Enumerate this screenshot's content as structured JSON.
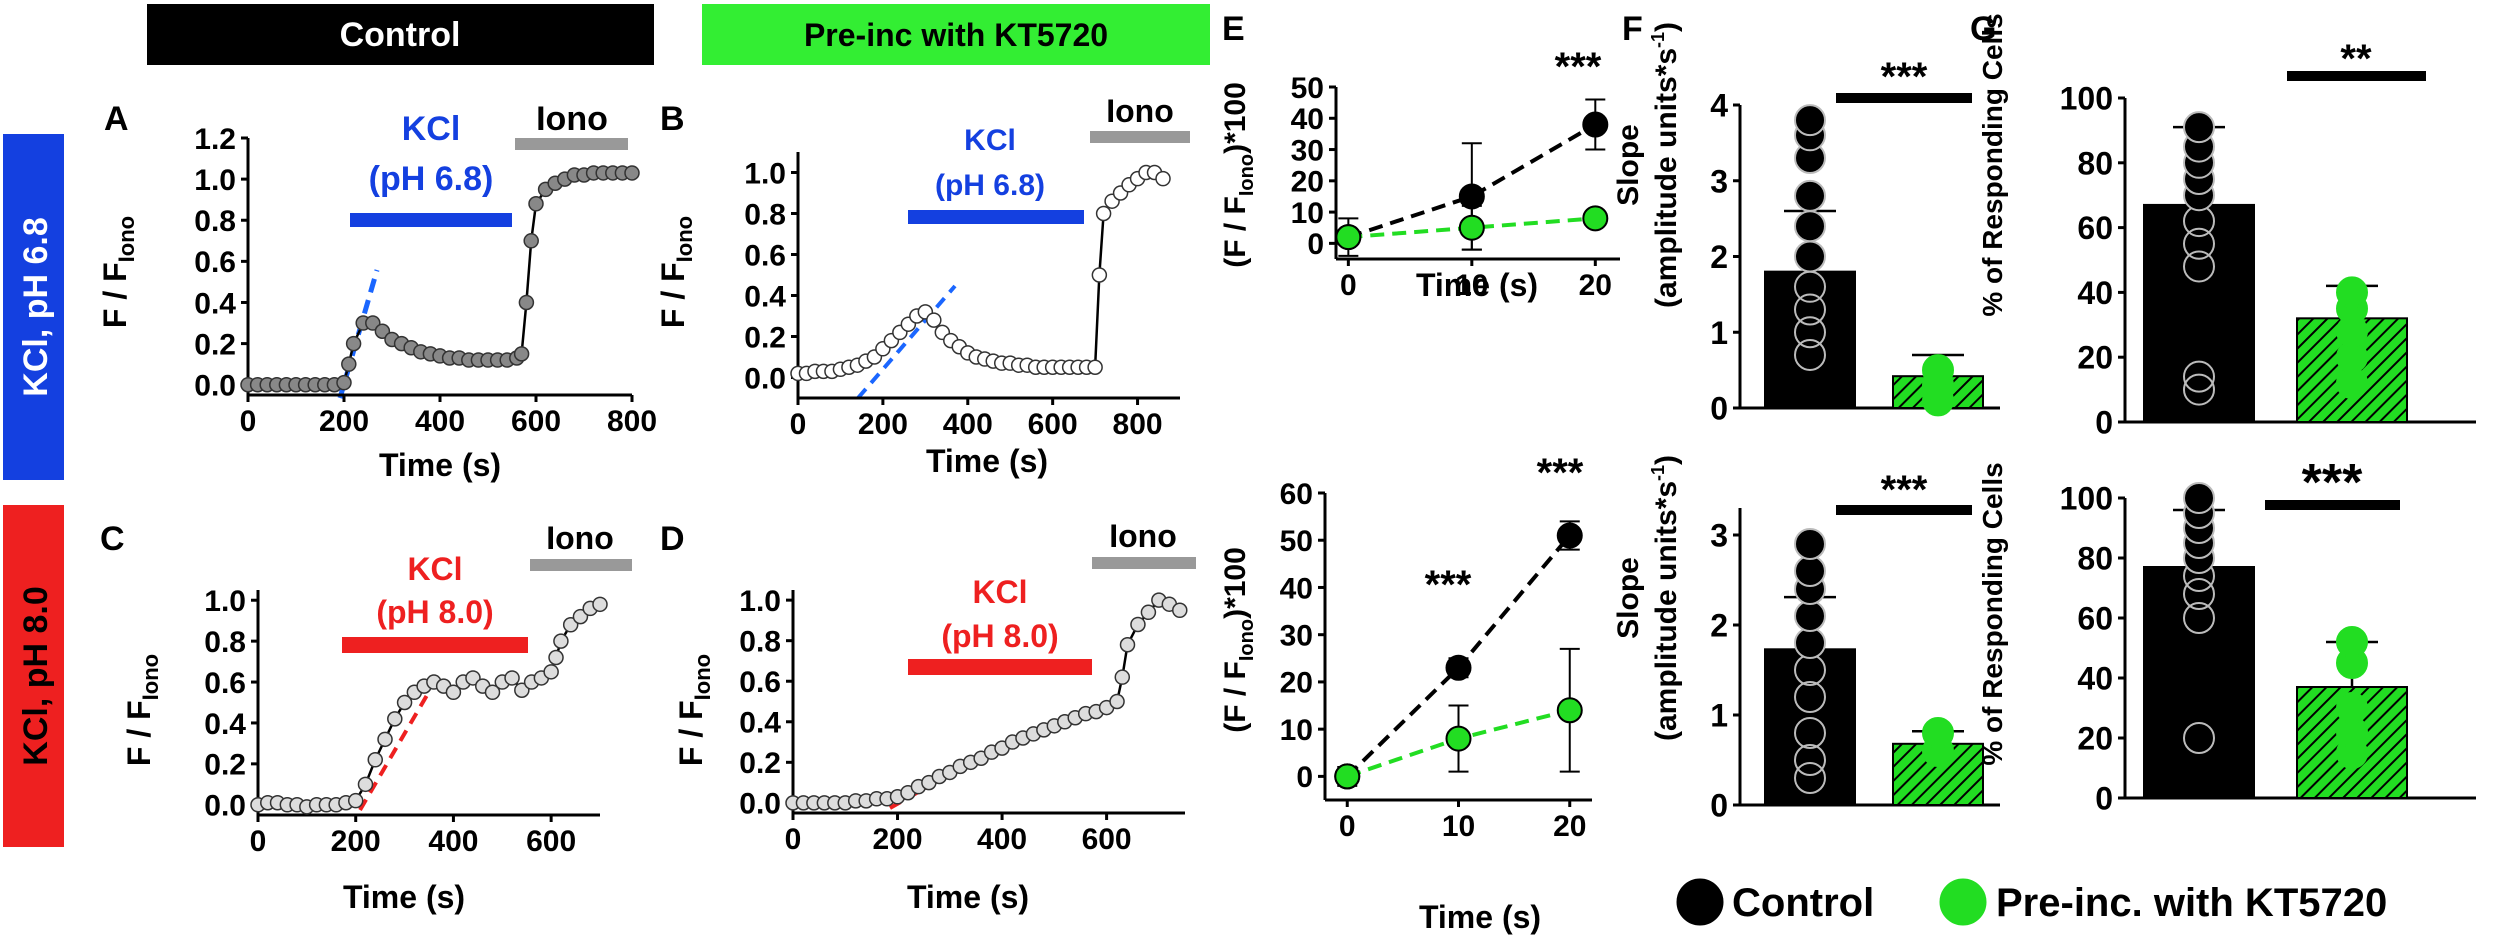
{
  "headers": {
    "control": "Control",
    "kt": "Pre-inc with KT5720"
  },
  "row_labels": {
    "ph68": "KCl, pH 6.8",
    "ph80": "KCl, pH 8.0"
  },
  "panel_letters": {
    "A": "A",
    "B": "B",
    "C": "C",
    "D": "D",
    "E": "E",
    "F": "F",
    "G": "G"
  },
  "stim": {
    "kcl": "KCl",
    "ph68": "(pH 6.8)",
    "ph80": "(pH 8.0)",
    "iono": "Iono"
  },
  "axis": {
    "time_s": "Time (s)",
    "f_main": "F / F",
    "f_sub": "Iono",
    "e_main": "(F / F",
    "e_sub": "Iono",
    "e_tail": ")*100",
    "slope_top": "Slope",
    "slope_units": "(amplitude units*s",
    "slope_exp": "-1",
    "slope_close": ")",
    "responding": "% of Responding Cells"
  },
  "legend": {
    "control": "Control",
    "kt": "Pre-inc. with KT5720"
  },
  "colors": {
    "blue": "#1440e0",
    "red": "#ee2020",
    "green": "#22dd22",
    "green_header": "#33ee33",
    "gray": "#999999",
    "black": "#000000"
  },
  "chart_data": [
    {
      "id": "A",
      "type": "line",
      "title": "",
      "xlabel": "Time (s)",
      "ylabel": "F / F_Iono",
      "xlim": [
        0,
        800
      ],
      "ylim": [
        -0.05,
        1.2
      ],
      "xticks": [
        "0",
        "200",
        "400",
        "600",
        "800"
      ],
      "yticks": [
        "0.0",
        "0.2",
        "0.4",
        "0.6",
        "0.8",
        "1.0",
        "1.2"
      ],
      "annotations": [
        "KCl (pH 6.8)",
        "Iono"
      ],
      "x": [
        0,
        20,
        40,
        60,
        80,
        100,
        120,
        140,
        160,
        180,
        200,
        210,
        220,
        240,
        260,
        280,
        300,
        320,
        340,
        360,
        380,
        400,
        420,
        440,
        460,
        480,
        500,
        520,
        540,
        560,
        570,
        580,
        590,
        600,
        620,
        640,
        660,
        680,
        700,
        720,
        740,
        760,
        780,
        800
      ],
      "y": [
        0.0,
        0.0,
        0.0,
        0.0,
        0.0,
        0.0,
        0.0,
        0.0,
        0.0,
        0.0,
        0.01,
        0.1,
        0.2,
        0.3,
        0.3,
        0.26,
        0.22,
        0.2,
        0.18,
        0.16,
        0.15,
        0.14,
        0.13,
        0.13,
        0.12,
        0.12,
        0.12,
        0.12,
        0.12,
        0.13,
        0.15,
        0.4,
        0.7,
        0.88,
        0.95,
        0.98,
        1.0,
        1.02,
        1.02,
        1.03,
        1.03,
        1.03,
        1.03,
        1.03
      ]
    },
    {
      "id": "B",
      "type": "line",
      "title": "",
      "xlabel": "Time (s)",
      "ylabel": "F / F_Iono",
      "xlim": [
        0,
        900
      ],
      "ylim": [
        -0.1,
        1.1
      ],
      "xticks": [
        "0",
        "200",
        "400",
        "600",
        "800"
      ],
      "yticks": [
        "0.0",
        "0.2",
        "0.4",
        "0.6",
        "0.8",
        "1.0"
      ],
      "annotations": [
        "KCl (pH 6.8)",
        "Iono"
      ],
      "x": [
        0,
        20,
        40,
        60,
        80,
        100,
        120,
        140,
        160,
        180,
        200,
        220,
        240,
        260,
        280,
        300,
        320,
        340,
        360,
        380,
        400,
        420,
        440,
        460,
        480,
        500,
        520,
        540,
        560,
        580,
        600,
        620,
        640,
        660,
        680,
        700,
        710,
        720,
        740,
        760,
        780,
        800,
        820,
        840,
        860
      ],
      "y": [
        0.02,
        0.02,
        0.03,
        0.03,
        0.03,
        0.04,
        0.05,
        0.06,
        0.08,
        0.1,
        0.14,
        0.18,
        0.22,
        0.26,
        0.3,
        0.32,
        0.28,
        0.22,
        0.18,
        0.15,
        0.12,
        0.1,
        0.09,
        0.08,
        0.07,
        0.07,
        0.06,
        0.06,
        0.05,
        0.05,
        0.05,
        0.05,
        0.05,
        0.05,
        0.05,
        0.05,
        0.5,
        0.8,
        0.86,
        0.9,
        0.94,
        0.97,
        1.0,
        1.0,
        0.97
      ]
    },
    {
      "id": "C",
      "type": "line",
      "title": "",
      "xlabel": "Time (s)",
      "ylabel": "F / F_Iono",
      "xlim": [
        0,
        700
      ],
      "ylim": [
        -0.05,
        1.05
      ],
      "xticks": [
        "0",
        "200",
        "400",
        "600"
      ],
      "yticks": [
        "0.0",
        "0.2",
        "0.4",
        "0.6",
        "0.8",
        "1.0"
      ],
      "annotations": [
        "KCl (pH 8.0)",
        "Iono"
      ],
      "x": [
        0,
        20,
        40,
        60,
        80,
        100,
        120,
        140,
        160,
        180,
        200,
        220,
        240,
        260,
        280,
        300,
        320,
        340,
        360,
        380,
        400,
        420,
        440,
        460,
        480,
        500,
        520,
        540,
        560,
        580,
        600,
        610,
        620,
        640,
        660,
        680,
        700
      ],
      "y": [
        0.0,
        0.01,
        0.01,
        0.0,
        0.0,
        -0.01,
        0.0,
        0.0,
        0.0,
        0.01,
        0.02,
        0.1,
        0.22,
        0.32,
        0.42,
        0.5,
        0.55,
        0.58,
        0.6,
        0.58,
        0.55,
        0.6,
        0.62,
        0.58,
        0.55,
        0.6,
        0.62,
        0.56,
        0.6,
        0.62,
        0.65,
        0.72,
        0.8,
        0.88,
        0.92,
        0.96,
        0.98
      ]
    },
    {
      "id": "D",
      "type": "line",
      "title": "",
      "xlabel": "Time (s)",
      "ylabel": "F / F_Iono",
      "xlim": [
        0,
        750
      ],
      "ylim": [
        -0.05,
        1.05
      ],
      "xticks": [
        "0",
        "200",
        "400",
        "600"
      ],
      "yticks": [
        "0.0",
        "0.2",
        "0.4",
        "0.6",
        "0.8",
        "1.0"
      ],
      "annotations": [
        "KCl (pH 8.0)",
        "Iono"
      ],
      "x": [
        0,
        20,
        40,
        60,
        80,
        100,
        120,
        140,
        160,
        180,
        200,
        220,
        240,
        260,
        280,
        300,
        320,
        340,
        360,
        380,
        400,
        420,
        440,
        460,
        480,
        500,
        520,
        540,
        560,
        580,
        600,
        620,
        630,
        640,
        660,
        680,
        700,
        720,
        740
      ],
      "y": [
        0.0,
        0.0,
        0.0,
        0.0,
        0.0,
        0.0,
        0.01,
        0.01,
        0.02,
        0.02,
        0.03,
        0.05,
        0.08,
        0.1,
        0.13,
        0.15,
        0.18,
        0.2,
        0.22,
        0.25,
        0.27,
        0.3,
        0.32,
        0.34,
        0.36,
        0.38,
        0.4,
        0.42,
        0.44,
        0.45,
        0.47,
        0.5,
        0.62,
        0.78,
        0.88,
        0.94,
        1.0,
        0.98,
        0.95
      ]
    },
    {
      "id": "E_top",
      "type": "scatter",
      "xlabel": "Time (s)",
      "ylabel": "(F / F_Iono)*100",
      "xlim": [
        -1,
        22
      ],
      "ylim": [
        -5,
        50
      ],
      "xticks": [
        "0",
        "10",
        "20"
      ],
      "yticks": [
        "0",
        "10",
        "20",
        "30",
        "40",
        "50"
      ],
      "annotations": [
        "***"
      ],
      "series": [
        {
          "name": "Control",
          "x": [
            0,
            10,
            20
          ],
          "values": [
            2,
            15,
            38
          ],
          "err": [
            6,
            17,
            8
          ]
        },
        {
          "name": "Pre-inc. with KT5720",
          "x": [
            0,
            10,
            20
          ],
          "values": [
            2,
            5,
            8
          ],
          "err": [
            1,
            7,
            2
          ]
        }
      ]
    },
    {
      "id": "E_bottom",
      "type": "scatter",
      "xlabel": "Time (s)",
      "ylabel": "(F / F_Iono)*100",
      "xlim": [
        -2,
        22
      ],
      "ylim": [
        -5,
        60
      ],
      "xticks": [
        "0",
        "10",
        "20"
      ],
      "yticks": [
        "0",
        "10",
        "20",
        "30",
        "40",
        "50",
        "60"
      ],
      "annotations": [
        "***",
        "***"
      ],
      "series": [
        {
          "name": "Control",
          "x": [
            0,
            10,
            20
          ],
          "values": [
            0,
            23,
            51
          ],
          "err": [
            2,
            2,
            3
          ]
        },
        {
          "name": "Pre-inc. with KT5720",
          "x": [
            0,
            10,
            20
          ],
          "values": [
            0,
            8,
            14
          ],
          "err": [
            1,
            7,
            13
          ]
        }
      ]
    },
    {
      "id": "F_top",
      "type": "bar",
      "ylabel": "Slope (amplitude units*s-1)",
      "ylim": [
        0,
        4
      ],
      "yticks": [
        "0",
        "1",
        "2",
        "3",
        "4"
      ],
      "categories": [
        "Control",
        "Pre-inc. with KT5720"
      ],
      "values": [
        1.8,
        0.42
      ],
      "err": [
        0.8,
        0.28
      ],
      "points": [
        [
          0.7,
          1.0,
          1.3,
          1.6,
          2.0,
          2.4,
          2.8,
          3.3,
          3.6,
          3.8
        ],
        [
          0.1,
          0.3,
          0.5
        ]
      ],
      "annotations": [
        "***"
      ]
    },
    {
      "id": "G_top",
      "type": "bar",
      "ylabel": "% of Responding Cells",
      "ylim": [
        0,
        100
      ],
      "yticks": [
        "0",
        "20",
        "40",
        "60",
        "80",
        "100"
      ],
      "categories": [
        "Control",
        "Pre-inc. with KT5720"
      ],
      "values": [
        67,
        32
      ],
      "err": [
        24,
        10
      ],
      "points": [
        [
          10,
          14,
          48,
          55,
          62,
          70,
          75,
          80,
          85,
          91
        ],
        [
          12,
          20,
          28,
          35,
          40
        ]
      ],
      "annotations": [
        "**"
      ]
    },
    {
      "id": "F_bottom",
      "type": "bar",
      "ylabel": "Slope (amplitude units*s-1)",
      "ylim": [
        0,
        3.3
      ],
      "yticks": [
        "0",
        "1",
        "2",
        "3"
      ],
      "categories": [
        "Control",
        "Pre-inc. with KT5720"
      ],
      "values": [
        1.73,
        0.68
      ],
      "err": [
        0.58,
        0.14
      ],
      "points": [
        [
          0.3,
          0.5,
          0.8,
          1.2,
          1.5,
          1.8,
          2.1,
          2.4,
          2.6,
          2.9
        ],
        [
          0.6,
          0.8
        ]
      ],
      "annotations": [
        "***"
      ]
    },
    {
      "id": "G_bottom",
      "type": "bar",
      "ylabel": "% of Responding Cells",
      "ylim": [
        0,
        100
      ],
      "yticks": [
        "0",
        "20",
        "40",
        "60",
        "80",
        "100"
      ],
      "categories": [
        "Control",
        "Pre-inc. with KT5720"
      ],
      "values": [
        77,
        37
      ],
      "err": [
        19,
        15
      ],
      "points": [
        [
          20,
          60,
          68,
          74,
          80,
          85,
          90,
          95,
          100
        ],
        [
          15,
          22,
          30,
          45,
          52
        ]
      ],
      "annotations": [
        "***"
      ]
    }
  ]
}
